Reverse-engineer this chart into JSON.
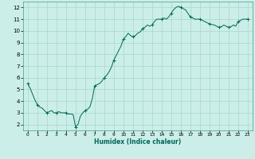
{
  "xlabel": "Humidex (Indice chaleur)",
  "bg_color": "#cbeee8",
  "grid_color": "#a8d8cc",
  "line_color": "#006655",
  "xlim": [
    -0.5,
    23.5
  ],
  "ylim": [
    1.5,
    12.5
  ],
  "xticks": [
    0,
    1,
    2,
    3,
    4,
    5,
    6,
    7,
    8,
    9,
    10,
    11,
    12,
    13,
    14,
    15,
    16,
    17,
    18,
    19,
    20,
    21,
    22,
    23
  ],
  "yticks": [
    2,
    3,
    4,
    5,
    6,
    7,
    8,
    9,
    10,
    11,
    12
  ],
  "x": [
    0,
    0.25,
    0.5,
    0.75,
    1.0,
    1.25,
    1.5,
    1.75,
    2.0,
    2.25,
    2.5,
    2.75,
    3.0,
    3.25,
    3.5,
    3.75,
    4.0,
    4.25,
    4.5,
    4.75,
    5.0,
    5.25,
    5.5,
    5.75,
    6.0,
    6.25,
    6.5,
    6.75,
    7.0,
    7.25,
    7.5,
    7.75,
    8.0,
    8.25,
    8.5,
    8.75,
    9.0,
    9.25,
    9.5,
    9.75,
    10.0,
    10.25,
    10.5,
    10.75,
    11.0,
    11.25,
    11.5,
    11.75,
    12.0,
    12.25,
    12.5,
    12.75,
    13.0,
    13.25,
    13.5,
    13.75,
    14.0,
    14.25,
    14.5,
    14.75,
    15.0,
    15.25,
    15.5,
    15.75,
    16.0,
    16.25,
    16.5,
    16.75,
    17.0,
    17.25,
    17.5,
    17.75,
    18.0,
    18.25,
    18.5,
    18.75,
    19.0,
    19.25,
    19.5,
    19.75,
    20.0,
    20.25,
    20.5,
    20.75,
    21.0,
    21.25,
    21.5,
    21.75,
    22.0,
    22.25,
    22.5,
    22.75,
    23.0
  ],
  "y": [
    5.5,
    5.1,
    4.6,
    4.1,
    3.7,
    3.5,
    3.4,
    3.2,
    3.0,
    3.1,
    3.2,
    3.0,
    3.0,
    3.1,
    3.0,
    3.0,
    3.0,
    2.9,
    2.9,
    2.85,
    1.8,
    2.0,
    2.7,
    3.0,
    3.2,
    3.3,
    3.5,
    4.2,
    5.3,
    5.4,
    5.5,
    5.7,
    6.0,
    6.2,
    6.5,
    6.9,
    7.5,
    7.9,
    8.3,
    8.7,
    9.3,
    9.5,
    9.8,
    9.6,
    9.5,
    9.6,
    9.8,
    9.9,
    10.2,
    10.3,
    10.5,
    10.4,
    10.5,
    10.8,
    11.0,
    11.0,
    11.0,
    11.1,
    11.0,
    11.2,
    11.5,
    11.8,
    12.0,
    12.1,
    12.0,
    11.9,
    11.8,
    11.5,
    11.2,
    11.1,
    11.0,
    11.0,
    11.0,
    10.9,
    10.8,
    10.7,
    10.6,
    10.55,
    10.5,
    10.4,
    10.3,
    10.35,
    10.5,
    10.4,
    10.3,
    10.35,
    10.5,
    10.4,
    10.8,
    10.9,
    11.0,
    11.0,
    11.0
  ]
}
